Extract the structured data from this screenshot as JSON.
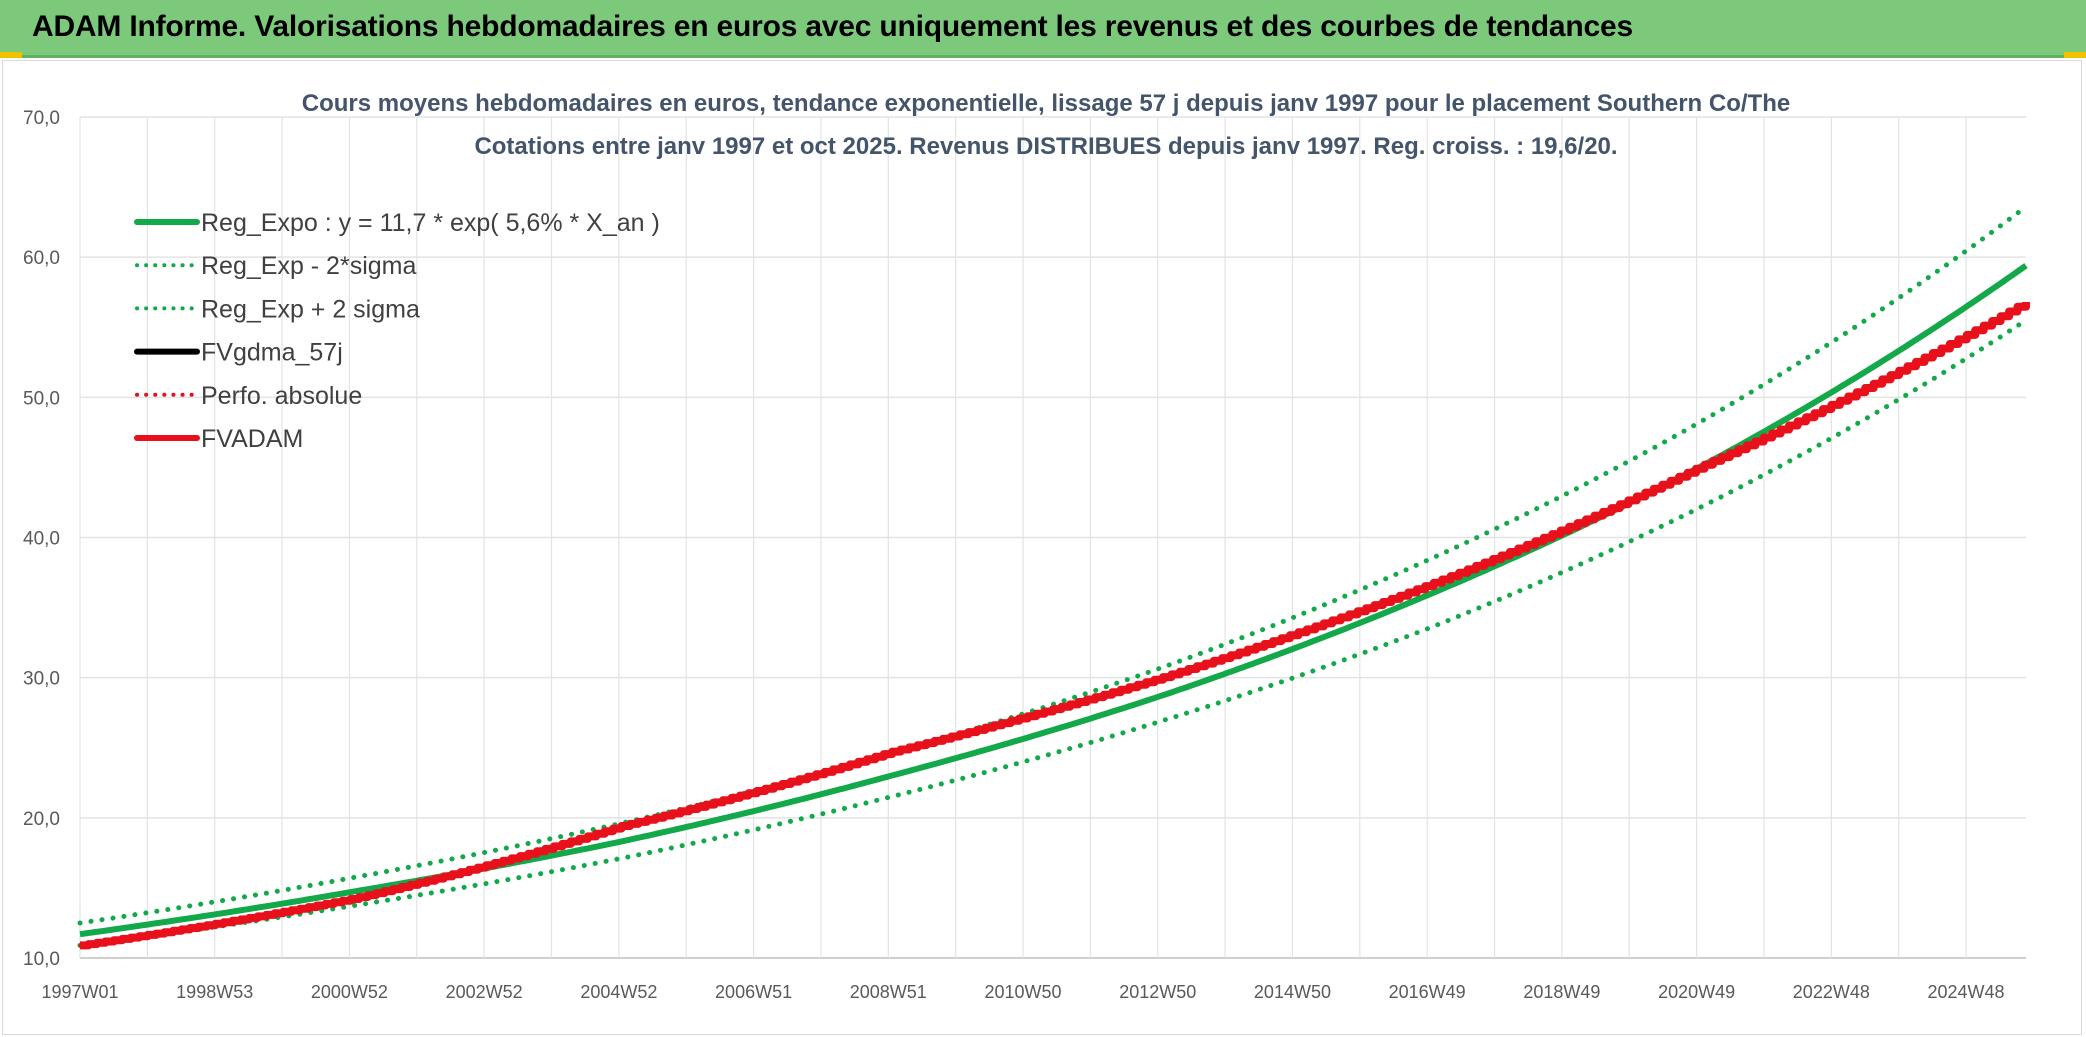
{
  "header": {
    "title": "ADAM Informe. Valorisations hebdomadaires en euros avec uniquement les revenus et des courbes de tendances"
  },
  "colors": {
    "banner": "#7dc97b",
    "green": "#13a84a",
    "red": "#e8101a",
    "black": "#000000",
    "grid": "#e3e3e3"
  },
  "chart_data": {
    "type": "line",
    "title": "Cours moyens hebdomadaires en euros, tendance exponentielle, lissage 57 j depuis janv 1997 pour le placement Southern Co/The",
    "subtitle": "Cotations entre janv 1997 et oct 2025. Revenus DISTRIBUES depuis janv 1997. Reg. croiss. : 19,6/20.",
    "xlabel": "",
    "ylabel": "",
    "x_range": [
      1997.0,
      2025.8
    ],
    "ylim": [
      10,
      70
    ],
    "y_ticks": [
      "10,0",
      "20,0",
      "30,0",
      "40,0",
      "50,0",
      "60,0",
      "70,0"
    ],
    "x_tick_labels": [
      "1997W01",
      "1998W53",
      "2000W52",
      "2002W52",
      "2004W52",
      "2006W51",
      "2008W51",
      "2010W50",
      "2012W50",
      "2014W50",
      "2016W49",
      "2018W49",
      "2020W49",
      "2022W48",
      "2024W48"
    ],
    "grid": true,
    "legend_position": "top-left",
    "series": [
      {
        "name": "Reg_Expo : y = 11,7 * exp( 5,6% *  X_an )",
        "color": "#13a84a",
        "style": "solid",
        "x": [
          1997,
          2001,
          2005,
          2009,
          2013,
          2017,
          2021,
          2025.8
        ],
        "values": [
          11.7,
          14.7,
          18.3,
          23.0,
          28.7,
          36.0,
          45.1,
          59.4
        ]
      },
      {
        "name": "Reg_Exp - 2*sigma",
        "color": "#13a84a",
        "style": "dotted",
        "x": [
          1997,
          2001,
          2005,
          2009,
          2013,
          2017,
          2021,
          2025.8
        ],
        "values": [
          10.9,
          13.7,
          17.1,
          21.5,
          26.9,
          33.6,
          42.2,
          55.5
        ]
      },
      {
        "name": "Reg_Exp + 2 sigma",
        "color": "#13a84a",
        "style": "dotted",
        "x": [
          1997,
          2001,
          2005,
          2009,
          2013,
          2017,
          2021,
          2025.8
        ],
        "values": [
          12.5,
          15.7,
          19.6,
          24.6,
          30.7,
          38.5,
          48.3,
          63.6
        ]
      },
      {
        "name": "FVgdma_57j",
        "color": "#000000",
        "style": "solid",
        "x": [],
        "values": []
      },
      {
        "name": "Perfo. absolue",
        "color": "#e8101a",
        "style": "dotted",
        "x": [
          1997,
          2001,
          2005,
          2009,
          2013,
          2017,
          2021,
          2025.8
        ],
        "values": [
          10.9,
          14.2,
          19.4,
          24.7,
          30.0,
          36.7,
          45.1,
          56.8
        ]
      },
      {
        "name": "FVADAM",
        "color": "#e8101a",
        "style": "solid",
        "x": [
          1997,
          2001,
          2005,
          2009,
          2013,
          2017,
          2021,
          2025.8
        ],
        "values": [
          10.9,
          14.2,
          19.4,
          24.7,
          30.0,
          36.7,
          45.1,
          56.8
        ]
      }
    ]
  }
}
